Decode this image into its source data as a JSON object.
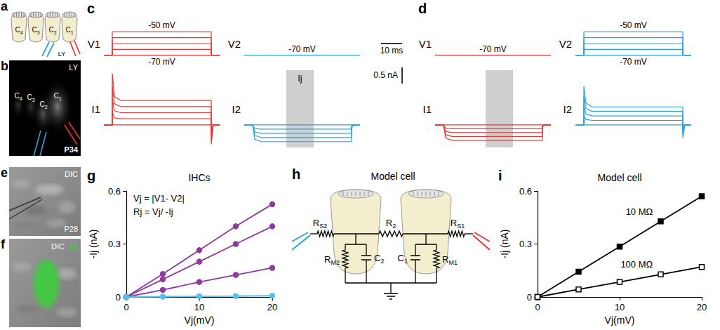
{
  "figure": {
    "a": {
      "letter": "a",
      "cells": [
        "C4",
        "C3",
        "C2",
        "C1"
      ],
      "pipette_label": "LY"
    },
    "b": {
      "letter": "b",
      "stain": "LY",
      "cells": [
        "C4",
        "C3",
        "C2",
        "C1"
      ],
      "age": "P34"
    },
    "e": {
      "letter": "e",
      "imaging": "DIC",
      "age": "P28"
    },
    "f": {
      "letter": "f",
      "imaging": "DIC",
      "stain": "LY"
    },
    "h": {
      "letter": "h",
      "title": "Model cell",
      "resistors": [
        "RS2",
        "R2",
        "RS1",
        "RM2",
        "RM1"
      ],
      "capacitors": [
        "C2",
        "C1"
      ]
    }
  },
  "scale_bars": [
    {
      "value": 10,
      "label": "10 ms"
    },
    {
      "value": 0.5,
      "label": "0.5 nA"
    }
  ],
  "chart_data": [
    {
      "type": "line",
      "letter": "c",
      "tick_labels": false,
      "traces": [
        {
          "label": "V1",
          "color": "#e53935",
          "xlim": [
            0,
            55
          ],
          "ylim": [
            -72,
            -48
          ],
          "x": [
            0,
            4,
            4,
            51,
            51,
            55
          ],
          "annotations": [
            "-50 mV",
            "-70 mV"
          ],
          "series": [
            {
              "values": [
                -70,
                -70,
                -70,
                -70,
                -70,
                -70
              ]
            },
            {
              "values": [
                -70,
                -70,
                -65,
                -65,
                -70,
                -70
              ]
            },
            {
              "values": [
                -70,
                -70,
                -60,
                -60,
                -70,
                -70
              ]
            },
            {
              "values": [
                -70,
                -70,
                -55,
                -55,
                -70,
                -70
              ]
            },
            {
              "values": [
                -70,
                -70,
                -50,
                -50,
                -70,
                -70
              ]
            }
          ]
        },
        {
          "label": "V2",
          "color": "#29a3db",
          "xlim": [
            0,
            55
          ],
          "ylim": [
            -72,
            -48
          ],
          "x": [
            0,
            4,
            4,
            51,
            51,
            55
          ],
          "annotations": [
            "-70 mV"
          ],
          "series": [
            {
              "values": [
                -70,
                -70,
                -70,
                -70,
                -70,
                -70
              ]
            }
          ]
        },
        {
          "label": "I1",
          "color": "#e53935",
          "xlim": [
            0,
            55
          ],
          "ylim": [
            -0.7,
            1.7
          ],
          "x": [
            0,
            4,
            4,
            5,
            8,
            51,
            51,
            52,
            55
          ],
          "series": [
            {
              "values": [
                0,
                0,
                0,
                0,
                0,
                0,
                0,
                0,
                0
              ]
            },
            {
              "values": [
                0,
                0,
                0.4,
                0.22,
                0.19,
                0.19,
                -0.15,
                0,
                0
              ]
            },
            {
              "values": [
                0,
                0,
                0.8,
                0.44,
                0.38,
                0.38,
                -0.3,
                0,
                0
              ]
            },
            {
              "values": [
                0,
                0,
                1.2,
                0.66,
                0.57,
                0.57,
                -0.45,
                0,
                0
              ]
            },
            {
              "values": [
                0,
                0,
                1.6,
                0.88,
                0.76,
                0.76,
                -0.6,
                0,
                0
              ]
            }
          ]
        },
        {
          "label": "I2",
          "color": "#29a3db",
          "xlim": [
            0,
            55
          ],
          "ylim": [
            -0.7,
            1.7
          ],
          "x": [
            0,
            4,
            4,
            5,
            8,
            51,
            51,
            52,
            55
          ],
          "window": [
            20,
            33
          ],
          "window_label": "Ij",
          "series": [
            {
              "values": [
                0,
                0,
                0,
                0,
                0,
                0,
                0,
                0,
                0
              ]
            },
            {
              "values": [
                0,
                0,
                0,
                -0.11,
                -0.13,
                -0.13,
                -0.02,
                0,
                0
              ]
            },
            {
              "values": [
                0,
                0,
                0,
                -0.22,
                -0.26,
                -0.26,
                -0.04,
                0,
                0
              ]
            },
            {
              "values": [
                0,
                0,
                0,
                -0.33,
                -0.39,
                -0.39,
                -0.06,
                0,
                0
              ]
            },
            {
              "values": [
                0,
                0,
                0,
                -0.44,
                -0.52,
                -0.52,
                -0.08,
                0,
                0
              ]
            }
          ]
        }
      ]
    },
    {
      "type": "line",
      "letter": "d",
      "tick_labels": false,
      "traces": [
        {
          "label": "V1",
          "color": "#e53935",
          "xlim": [
            0,
            55
          ],
          "ylim": [
            -72,
            -48
          ],
          "x": [
            0,
            4,
            4,
            51,
            51,
            55
          ],
          "annotations": [
            "-70 mV"
          ],
          "series": [
            {
              "values": [
                -70,
                -70,
                -70,
                -70,
                -70,
                -70
              ]
            }
          ]
        },
        {
          "label": "V2",
          "color": "#29a3db",
          "xlim": [
            0,
            55
          ],
          "ylim": [
            -72,
            -48
          ],
          "x": [
            0,
            4,
            4,
            51,
            51,
            55
          ],
          "annotations": [
            "-50 mV",
            "-70 mV"
          ],
          "series": [
            {
              "values": [
                -70,
                -70,
                -70,
                -70,
                -70,
                -70
              ]
            },
            {
              "values": [
                -70,
                -70,
                -65,
                -65,
                -70,
                -70
              ]
            },
            {
              "values": [
                -70,
                -70,
                -60,
                -60,
                -70,
                -70
              ]
            },
            {
              "values": [
                -70,
                -70,
                -55,
                -55,
                -70,
                -70
              ]
            },
            {
              "values": [
                -70,
                -70,
                -50,
                -50,
                -70,
                -70
              ]
            }
          ]
        },
        {
          "label": "I1",
          "color": "#e53935",
          "xlim": [
            0,
            55
          ],
          "ylim": [
            -0.7,
            1.7
          ],
          "x": [
            0,
            4,
            4,
            5,
            8,
            51,
            51,
            52,
            55
          ],
          "window": [
            24,
            37
          ],
          "series": [
            {
              "values": [
                0,
                0,
                0,
                0,
                0,
                0,
                0,
                0,
                0
              ]
            },
            {
              "values": [
                0,
                0,
                0,
                -0.1,
                -0.12,
                -0.12,
                -0.02,
                0,
                0
              ]
            },
            {
              "values": [
                0,
                0,
                0,
                -0.2,
                -0.24,
                -0.24,
                -0.04,
                0,
                0
              ]
            },
            {
              "values": [
                0,
                0,
                0,
                -0.3,
                -0.36,
                -0.36,
                -0.06,
                0,
                0
              ]
            },
            {
              "values": [
                0,
                0,
                0,
                -0.41,
                -0.48,
                -0.48,
                -0.07,
                0,
                0
              ]
            }
          ]
        },
        {
          "label": "I2",
          "color": "#29a3db",
          "xlim": [
            0,
            55
          ],
          "ylim": [
            -0.7,
            1.7
          ],
          "x": [
            0,
            4,
            4,
            5,
            8,
            51,
            51,
            52,
            55
          ],
          "series": [
            {
              "values": [
                0,
                0,
                0,
                0,
                0,
                0,
                0,
                0,
                0
              ]
            },
            {
              "values": [
                0,
                0,
                0.3,
                0.17,
                0.14,
                0.14,
                -0.1,
                0,
                0
              ]
            },
            {
              "values": [
                0,
                0,
                0.6,
                0.34,
                0.28,
                0.28,
                -0.2,
                0,
                0
              ]
            },
            {
              "values": [
                0,
                0,
                0.9,
                0.51,
                0.42,
                0.42,
                -0.3,
                0,
                0
              ]
            },
            {
              "values": [
                0,
                0,
                1.2,
                0.68,
                0.56,
                0.56,
                -0.4,
                0,
                0
              ]
            }
          ]
        }
      ]
    },
    {
      "type": "line",
      "letter": "g",
      "title": "IHCs",
      "x_label": "Vj(mV)",
      "y_label": "-Ij (nA)",
      "annotations": [
        "Vj = |V1- V2|",
        "Rj = Vj/ -Ij"
      ],
      "x": [
        0,
        5,
        10,
        15,
        20
      ],
      "xlim": [
        0,
        20
      ],
      "xticks": [
        0,
        10,
        20
      ],
      "ylim": [
        0,
        0.6
      ],
      "yticks": [
        0,
        0.3,
        0.6
      ],
      "marker": "circle",
      "series": [
        {
          "color": "#8e3a9d",
          "values": [
            0,
            0.13,
            0.265,
            0.4,
            0.525
          ]
        },
        {
          "color": "#8e3a9d",
          "values": [
            0,
            0.1,
            0.2,
            0.3,
            0.4
          ]
        },
        {
          "color": "#8e3a9d",
          "values": [
            0,
            0.04,
            0.085,
            0.125,
            0.165
          ]
        },
        {
          "color": "#4fc3e8",
          "values": [
            0,
            0.002,
            0.004,
            0.005,
            0.007
          ]
        }
      ]
    },
    {
      "type": "line",
      "letter": "i",
      "title": "Model cell",
      "x_label": "Vj(mV)",
      "y_label": "-Ij (nA)",
      "x": [
        0,
        5,
        10,
        15,
        20
      ],
      "xlim": [
        0,
        20
      ],
      "xticks": [
        0,
        10,
        20
      ],
      "ylim": [
        0,
        0.6
      ],
      "yticks": [
        0,
        0.3,
        0.6
      ],
      "series": [
        {
          "name": "10 MΩ",
          "color": "#000000",
          "marker": "square",
          "values": [
            0,
            0.143,
            0.285,
            0.428,
            0.57
          ]
        },
        {
          "name": "100 MΩ",
          "color": "#000000",
          "marker": "open square",
          "values": [
            0,
            0.043,
            0.085,
            0.128,
            0.17
          ]
        }
      ]
    }
  ]
}
